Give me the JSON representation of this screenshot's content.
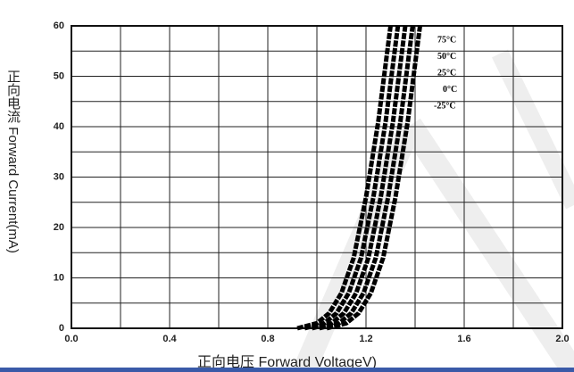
{
  "chart_data": {
    "type": "line",
    "ylabel": "正向电流 Forward Current(mA)",
    "xlabel": "正向电压 Forward VoltageV)",
    "xlim": [
      0,
      2
    ],
    "ylim": [
      0,
      60
    ],
    "xticks": [
      {
        "value": 0,
        "label": "0.0"
      },
      {
        "value": 0.4,
        "label": "0.4"
      },
      {
        "value": 0.8,
        "label": "0.8"
      },
      {
        "value": 1.2,
        "label": "1.2"
      },
      {
        "value": 1.6,
        "label": "1.6"
      },
      {
        "value": 2,
        "label": "2.0"
      }
    ],
    "yticks": [
      0,
      10,
      20,
      30,
      40,
      50,
      60
    ],
    "xgrid": [
      0.2,
      0.6,
      1.0,
      1.4,
      1.8
    ],
    "ygrid": [
      5,
      15,
      25,
      35,
      45,
      55
    ],
    "grid": true,
    "series": [
      {
        "name": "75°C",
        "color": "#000000",
        "x": [
          0.92,
          1.0,
          1.05,
          1.1,
          1.15,
          1.2,
          1.25,
          1.3
        ],
        "values": [
          0,
          1,
          3,
          7,
          14,
          26,
          41,
          60
        ]
      },
      {
        "name": "50°C",
        "color": "#000000",
        "x": [
          0.95,
          1.03,
          1.08,
          1.13,
          1.18,
          1.23,
          1.28,
          1.33
        ],
        "values": [
          0,
          1,
          3,
          7,
          14,
          26,
          41,
          60
        ]
      },
      {
        "name": "25°C",
        "color": "#000000",
        "x": [
          0.98,
          1.06,
          1.11,
          1.16,
          1.21,
          1.26,
          1.31,
          1.36
        ],
        "values": [
          0,
          1,
          3,
          7,
          14,
          26,
          41,
          60
        ]
      },
      {
        "name": "0°C",
        "color": "#000000",
        "x": [
          1.01,
          1.09,
          1.14,
          1.19,
          1.24,
          1.29,
          1.34,
          1.39
        ],
        "values": [
          0,
          1,
          3,
          7,
          14,
          26,
          41,
          60
        ]
      },
      {
        "name": "-25°C",
        "color": "#000000",
        "x": [
          1.04,
          1.12,
          1.17,
          1.22,
          1.27,
          1.32,
          1.37,
          1.42
        ],
        "values": [
          0,
          1,
          3,
          7,
          14,
          26,
          41,
          60
        ]
      }
    ]
  }
}
